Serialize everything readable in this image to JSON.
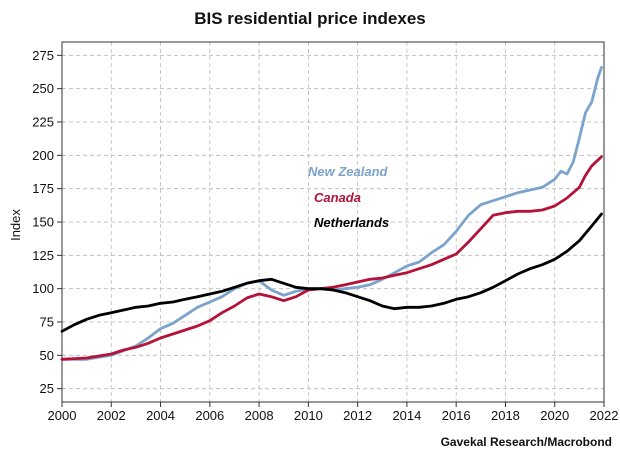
{
  "chart_data": {
    "type": "line",
    "title": "BIS residential price indexes",
    "ylabel": "Index",
    "xlabel": "",
    "source": "Gavekal Research/Macrobond",
    "xlim": [
      2000,
      2022
    ],
    "ylim": [
      15,
      285
    ],
    "x_ticks": [
      2000,
      2002,
      2004,
      2006,
      2008,
      2010,
      2012,
      2014,
      2016,
      2018,
      2020,
      2022
    ],
    "y_ticks": [
      25,
      50,
      75,
      100,
      125,
      150,
      175,
      200,
      225,
      250,
      275
    ],
    "grid": true,
    "legend_position": "inline-center-left",
    "series": [
      {
        "name": "New Zealand",
        "color": "#7ba3cc",
        "points": [
          [
            2000,
            47
          ],
          [
            2001,
            47
          ],
          [
            2002,
            50
          ],
          [
            2003,
            57
          ],
          [
            2003.5,
            63
          ],
          [
            2004,
            70
          ],
          [
            2004.5,
            74
          ],
          [
            2005,
            80
          ],
          [
            2005.5,
            86
          ],
          [
            2006,
            90
          ],
          [
            2006.5,
            94
          ],
          [
            2007,
            100
          ],
          [
            2007.5,
            104
          ],
          [
            2008,
            106
          ],
          [
            2008.5,
            99
          ],
          [
            2009,
            95
          ],
          [
            2009.5,
            98
          ],
          [
            2010,
            100
          ],
          [
            2010.5,
            100
          ],
          [
            2011,
            99
          ],
          [
            2011.5,
            100
          ],
          [
            2012,
            101
          ],
          [
            2012.5,
            103
          ],
          [
            2013,
            107
          ],
          [
            2013.5,
            112
          ],
          [
            2014,
            117
          ],
          [
            2014.5,
            120
          ],
          [
            2015,
            127
          ],
          [
            2015.5,
            133
          ],
          [
            2016,
            143
          ],
          [
            2016.5,
            155
          ],
          [
            2017,
            163
          ],
          [
            2017.5,
            166
          ],
          [
            2018,
            169
          ],
          [
            2018.5,
            172
          ],
          [
            2019,
            174
          ],
          [
            2019.5,
            176
          ],
          [
            2020,
            182
          ],
          [
            2020.25,
            188
          ],
          [
            2020.5,
            186
          ],
          [
            2020.75,
            195
          ],
          [
            2021,
            213
          ],
          [
            2021.25,
            232
          ],
          [
            2021.5,
            240
          ],
          [
            2021.75,
            258
          ],
          [
            2021.9,
            266
          ]
        ]
      },
      {
        "name": "Canada",
        "color": "#b5123a",
        "points": [
          [
            2000,
            47
          ],
          [
            2001,
            48
          ],
          [
            2002,
            51
          ],
          [
            2002.5,
            54
          ],
          [
            2003,
            56
          ],
          [
            2003.5,
            59
          ],
          [
            2004,
            63
          ],
          [
            2004.5,
            66
          ],
          [
            2005,
            69
          ],
          [
            2005.5,
            72
          ],
          [
            2006,
            76
          ],
          [
            2006.5,
            82
          ],
          [
            2007,
            87
          ],
          [
            2007.5,
            93
          ],
          [
            2008,
            96
          ],
          [
            2008.5,
            94
          ],
          [
            2009,
            91
          ],
          [
            2009.5,
            94
          ],
          [
            2010,
            99
          ],
          [
            2010.5,
            100
          ],
          [
            2011,
            101
          ],
          [
            2011.5,
            103
          ],
          [
            2012,
            105
          ],
          [
            2012.5,
            107
          ],
          [
            2013,
            108
          ],
          [
            2013.5,
            110
          ],
          [
            2014,
            112
          ],
          [
            2014.5,
            115
          ],
          [
            2015,
            118
          ],
          [
            2015.5,
            122
          ],
          [
            2016,
            126
          ],
          [
            2016.5,
            135
          ],
          [
            2017,
            145
          ],
          [
            2017.5,
            155
          ],
          [
            2018,
            157
          ],
          [
            2018.5,
            158
          ],
          [
            2019,
            158
          ],
          [
            2019.5,
            159
          ],
          [
            2020,
            162
          ],
          [
            2020.5,
            168
          ],
          [
            2021,
            176
          ],
          [
            2021.25,
            185
          ],
          [
            2021.5,
            192
          ],
          [
            2021.9,
            199
          ]
        ]
      },
      {
        "name": "Netherlands",
        "color": "#000000",
        "points": [
          [
            2000,
            68
          ],
          [
            2000.5,
            73
          ],
          [
            2001,
            77
          ],
          [
            2001.5,
            80
          ],
          [
            2002,
            82
          ],
          [
            2002.5,
            84
          ],
          [
            2003,
            86
          ],
          [
            2003.5,
            87
          ],
          [
            2004,
            89
          ],
          [
            2004.5,
            90
          ],
          [
            2005,
            92
          ],
          [
            2005.5,
            94
          ],
          [
            2006,
            96
          ],
          [
            2006.5,
            98
          ],
          [
            2007,
            101
          ],
          [
            2007.5,
            104
          ],
          [
            2008,
            106
          ],
          [
            2008.5,
            107
          ],
          [
            2009,
            104
          ],
          [
            2009.5,
            101
          ],
          [
            2010,
            100
          ],
          [
            2010.5,
            100
          ],
          [
            2011,
            99
          ],
          [
            2011.5,
            97
          ],
          [
            2012,
            94
          ],
          [
            2012.5,
            91
          ],
          [
            2013,
            87
          ],
          [
            2013.5,
            85
          ],
          [
            2014,
            86
          ],
          [
            2014.5,
            86
          ],
          [
            2015,
            87
          ],
          [
            2015.5,
            89
          ],
          [
            2016,
            92
          ],
          [
            2016.5,
            94
          ],
          [
            2017,
            97
          ],
          [
            2017.5,
            101
          ],
          [
            2018,
            106
          ],
          [
            2018.5,
            111
          ],
          [
            2019,
            115
          ],
          [
            2019.5,
            118
          ],
          [
            2020,
            122
          ],
          [
            2020.5,
            128
          ],
          [
            2021,
            136
          ],
          [
            2021.5,
            147
          ],
          [
            2021.9,
            156
          ]
        ]
      }
    ]
  }
}
